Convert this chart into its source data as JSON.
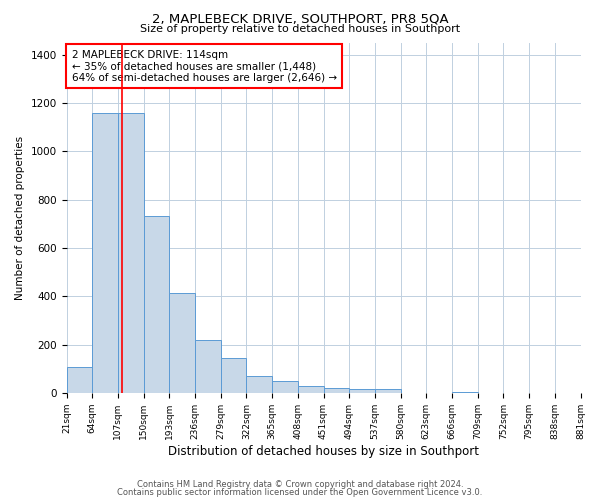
{
  "title": "2, MAPLEBECK DRIVE, SOUTHPORT, PR8 5QA",
  "subtitle": "Size of property relative to detached houses in Southport",
  "xlabel": "Distribution of detached houses by size in Southport",
  "ylabel": "Number of detached properties",
  "bar_color": "#c8d8e8",
  "bar_edge_color": "#5b9bd5",
  "background_color": "#ffffff",
  "grid_color": "#c0d0e0",
  "red_line_x": 114,
  "annotation_title": "2 MAPLEBECK DRIVE: 114sqm",
  "annotation_line1": "← 35% of detached houses are smaller (1,448)",
  "annotation_line2": "64% of semi-detached houses are larger (2,646) →",
  "bin_edges": [
    21,
    64,
    107,
    150,
    193,
    236,
    279,
    322,
    365,
    408,
    451,
    494,
    537,
    580,
    623,
    666,
    709,
    752,
    795,
    838,
    881
  ],
  "bar_heights": [
    105,
    1160,
    1160,
    730,
    415,
    220,
    145,
    70,
    48,
    30,
    20,
    15,
    15,
    0,
    0,
    5,
    0,
    0,
    0,
    0
  ],
  "ylim": [
    0,
    1450
  ],
  "yticks": [
    0,
    200,
    400,
    600,
    800,
    1000,
    1200,
    1400
  ],
  "footer_line1": "Contains HM Land Registry data © Crown copyright and database right 2024.",
  "footer_line2": "Contains public sector information licensed under the Open Government Licence v3.0."
}
